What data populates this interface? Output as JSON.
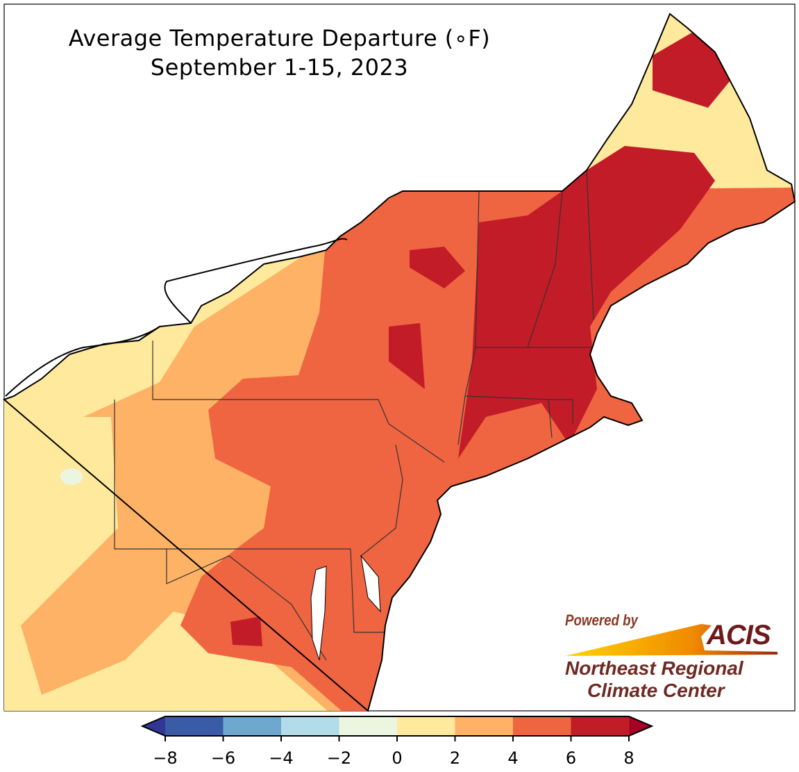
{
  "title": {
    "line1": "Average Temperature Departure (∘F)",
    "line2": "September 1-15, 2023"
  },
  "colorbar": {
    "ticks": [
      "−8",
      "−6",
      "−4",
      "−2",
      "0",
      "2",
      "4",
      "6",
      "8"
    ],
    "bin_colors": [
      "#3a5ba6",
      "#6ea8cf",
      "#b2dcea",
      "#ebf6e1",
      "#fee99d",
      "#fdb265",
      "#ef6441",
      "#c21c28"
    ],
    "under_color": "#313695",
    "over_color": "#a50026"
  },
  "map_colors": {
    "zero_to_two": "#fee99d",
    "two_to_four": "#fdb265",
    "four_to_six": "#ef6441",
    "six_to_eight": "#c21c28",
    "minus_two_to_zero": "#ebf6e1"
  },
  "logo": {
    "powered_by": "Powered by",
    "acis": "ACIS",
    "line1": "Northeast Regional",
    "line2": "Climate Center"
  }
}
